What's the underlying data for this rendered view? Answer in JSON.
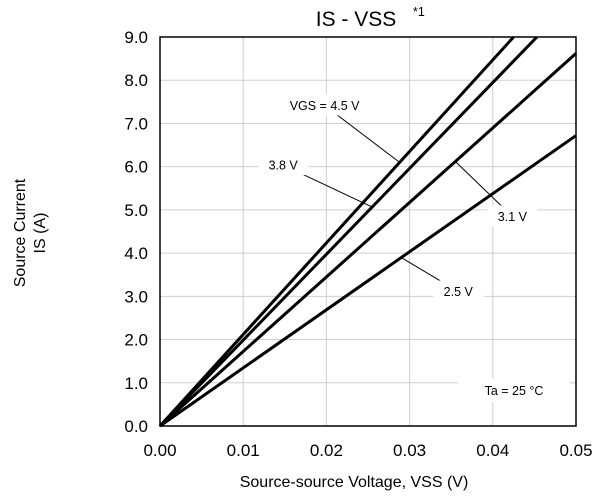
{
  "chart_data": {
    "type": "line",
    "title": "IS - VSS",
    "title_note": "*1",
    "xlabel": "Source-source Voltage, VSS (V)",
    "ylabel_line1": "Source Current",
    "ylabel_line2": "IS (A)",
    "xlim": [
      0,
      0.05
    ],
    "ylim": [
      0,
      9
    ],
    "x_ticks": [
      "0.00",
      "0.01",
      "0.02",
      "0.03",
      "0.04",
      "0.05"
    ],
    "y_ticks": [
      "0.0",
      "1.0",
      "2.0",
      "3.0",
      "4.0",
      "5.0",
      "6.0",
      "7.0",
      "8.0",
      "9.0"
    ],
    "grid": true,
    "series": [
      {
        "label": "VGS = 4.5 V",
        "x": [
          0,
          0.0425
        ],
        "y": [
          0,
          9.0
        ]
      },
      {
        "label": "3.8 V",
        "x": [
          0,
          0.0453
        ],
        "y": [
          0,
          9.0
        ]
      },
      {
        "label": "3.1 V",
        "x": [
          0,
          0.05
        ],
        "y": [
          0,
          8.62
        ]
      },
      {
        "label": "2.5 V",
        "x": [
          0,
          0.05
        ],
        "y": [
          0,
          6.72
        ]
      }
    ],
    "annotations": [
      {
        "text": "VGS = 4.5 V",
        "series": 0,
        "at_x": 0.0288
      },
      {
        "text": "3.8 V",
        "series": 1,
        "at_x": 0.0255
      },
      {
        "text": "3.1 V",
        "series": 2,
        "at_x": 0.0355
      },
      {
        "text": "2.5 V",
        "series": 3,
        "at_x": 0.029
      }
    ],
    "condition": "Ta = 25 °C",
    "colors": {
      "line": "#000000",
      "grid": "#cfcfcf",
      "frame": "#000000"
    }
  }
}
